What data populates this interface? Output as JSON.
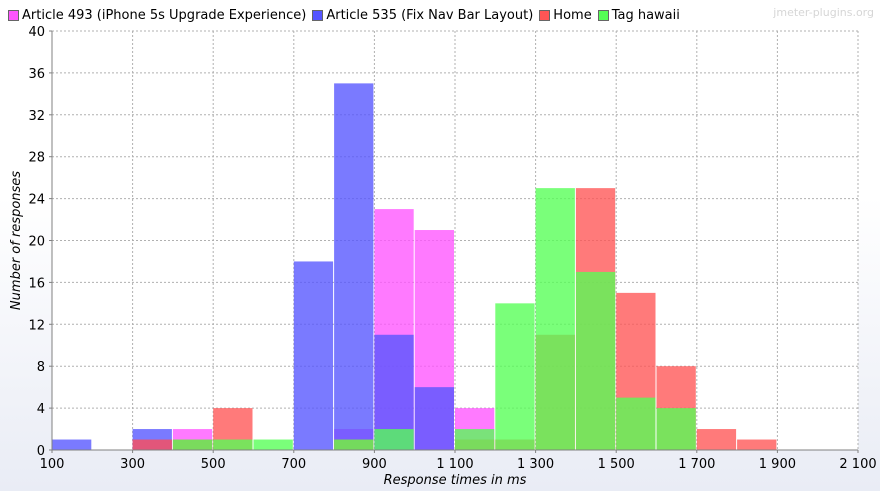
{
  "watermark": "jmeter-plugins.org",
  "chart_data": {
    "type": "bar",
    "xlabel": "Response times in ms",
    "ylabel": "Number of responses",
    "xlim": [
      100,
      2100
    ],
    "ylim": [
      0,
      40
    ],
    "bin_width": 100,
    "x_ticks": [
      100,
      300,
      500,
      700,
      900,
      1100,
      1300,
      1500,
      1700,
      1900,
      2100
    ],
    "x_tick_labels": [
      "100",
      "300",
      "500",
      "700",
      "900",
      "1 100",
      "1 300",
      "1 500",
      "1 700",
      "1 900",
      "2 100"
    ],
    "y_ticks": [
      0,
      4,
      8,
      12,
      16,
      20,
      24,
      28,
      32,
      36,
      40
    ],
    "grid": true,
    "legend_position": "top-left",
    "series": [
      {
        "name": "Article 493 (iPhone 5s Upgrade Experience)",
        "color": "#ff55ff",
        "bins": [
          [
            300,
            1
          ],
          [
            400,
            2
          ],
          [
            800,
            2
          ],
          [
            900,
            23
          ],
          [
            1000,
            21
          ],
          [
            1100,
            4
          ]
        ]
      },
      {
        "name": "Article 535 (Fix Nav Bar Layout)",
        "color": "#5555ff",
        "bins": [
          [
            100,
            1
          ],
          [
            300,
            2
          ],
          [
            700,
            18
          ],
          [
            800,
            35
          ],
          [
            900,
            11
          ],
          [
            1000,
            6
          ]
        ]
      },
      {
        "name": "Home",
        "color": "#ff5555",
        "bins": [
          [
            300,
            1
          ],
          [
            400,
            1
          ],
          [
            500,
            4
          ],
          [
            800,
            1
          ],
          [
            1100,
            1
          ],
          [
            1200,
            1
          ],
          [
            1300,
            11
          ],
          [
            1400,
            25
          ],
          [
            1500,
            15
          ],
          [
            1600,
            8
          ],
          [
            1700,
            2
          ],
          [
            1800,
            1
          ]
        ]
      },
      {
        "name": "Tag hawaii",
        "color": "#55ff55",
        "bins": [
          [
            400,
            1
          ],
          [
            500,
            1
          ],
          [
            600,
            1
          ],
          [
            800,
            1
          ],
          [
            900,
            2
          ],
          [
            1100,
            2
          ],
          [
            1200,
            14
          ],
          [
            1300,
            25
          ],
          [
            1400,
            17
          ],
          [
            1500,
            5
          ],
          [
            1600,
            4
          ]
        ]
      }
    ]
  }
}
